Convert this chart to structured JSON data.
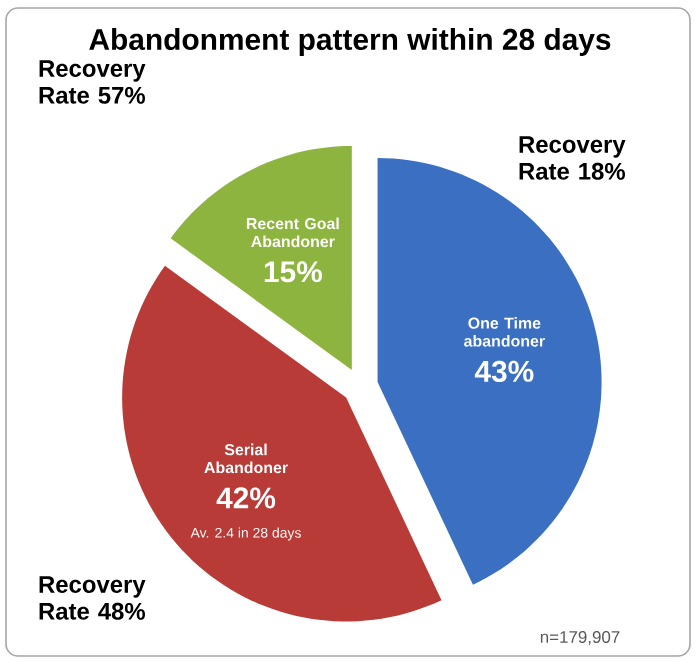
{
  "chart_data": {
    "type": "pie",
    "title": "Abandonment pattern within 28 days",
    "categories": [
      "One Time abandoner",
      "Serial Abandoner",
      "Recent Goal Abandoner"
    ],
    "values": [
      43,
      42,
      15
    ],
    "colors": [
      "#3b6fc1",
      "#b83b37",
      "#8db43e"
    ],
    "value_labels": [
      "43%",
      "42%",
      "15%"
    ],
    "annotations": [
      "Recovery Rate 18%",
      "Recovery Rate 48%",
      "Recovery Rate 57%",
      "Av. 2.4 in 28 days",
      "n=179,907"
    ]
  }
}
